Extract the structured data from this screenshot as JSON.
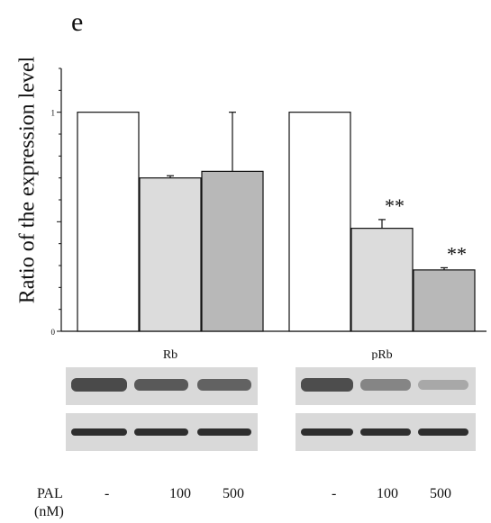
{
  "panel_label": "e",
  "chart_data": {
    "type": "bar",
    "ylabel": "Ratio of the expression level",
    "ylim": [
      0,
      1.2
    ],
    "yticks": [
      0,
      1
    ],
    "categories": [
      "Rb",
      "pRb"
    ],
    "series": [
      {
        "values": [
          1.0,
          1.0
        ],
        "errors": [
          0,
          0
        ],
        "color": "#ffffff"
      },
      {
        "values": [
          0.7,
          0.47
        ],
        "errors": [
          0.01,
          0.04
        ],
        "color": "#dcdcdc"
      },
      {
        "values": [
          0.73,
          0.28
        ],
        "errors": [
          0.27,
          0.01
        ],
        "color": "#b8b8b8"
      }
    ],
    "annotations": [
      {
        "category": "pRb",
        "series": 1,
        "text": "**"
      },
      {
        "category": "pRb",
        "series": 2,
        "text": "**"
      }
    ]
  },
  "treatment": {
    "label": "PAL",
    "unit": "(nM)",
    "doses": [
      "-",
      "100",
      "500",
      "-",
      "100",
      "500"
    ]
  }
}
